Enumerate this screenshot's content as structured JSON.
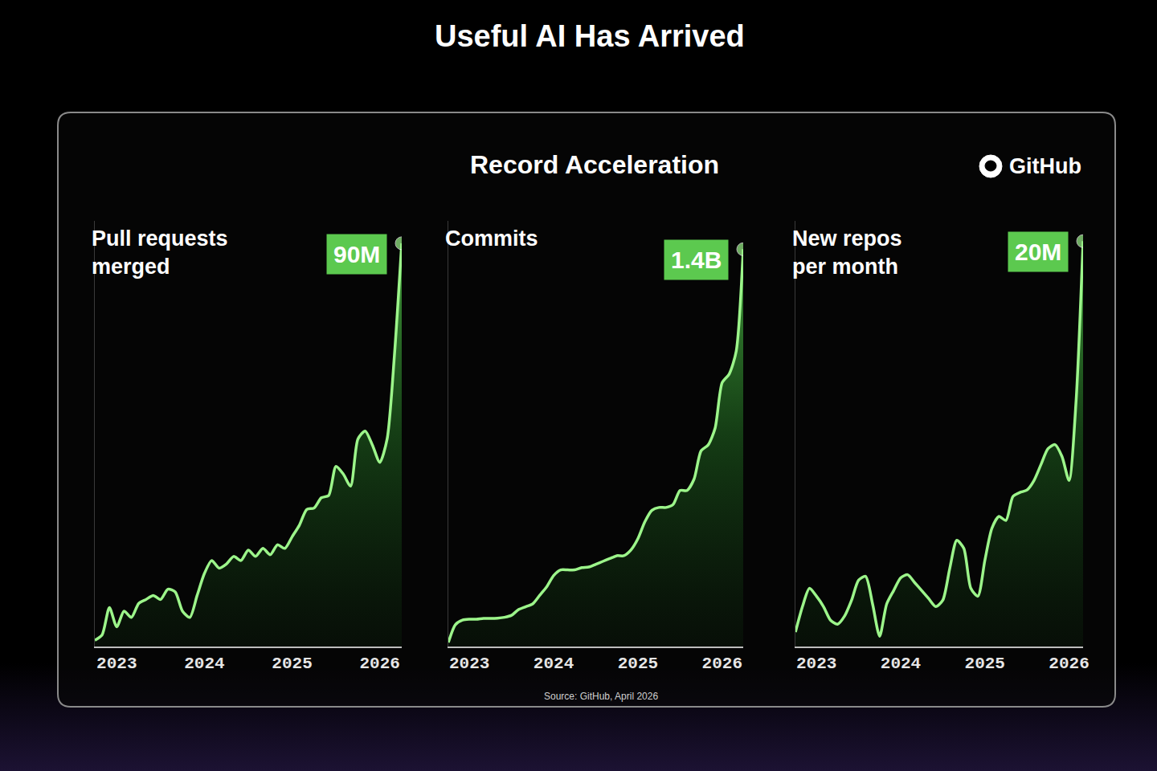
{
  "title": "Useful AI Has Arrived",
  "panel": {
    "title": "Record Acceleration",
    "brand": "GitHub",
    "source": "Source: GitHub, April 2026"
  },
  "chart_data": [
    {
      "type": "line",
      "title": "Pull requests merged",
      "categories": [
        null,
        null,
        null,
        "2023",
        null,
        null,
        null,
        null,
        null,
        null,
        null,
        null,
        null,
        null,
        null,
        "2024",
        null,
        null,
        null,
        null,
        null,
        null,
        null,
        null,
        null,
        null,
        null,
        "2025",
        null,
        null,
        null,
        null,
        null,
        null,
        null,
        null,
        null,
        null,
        null,
        "2026",
        null,
        null,
        null
      ],
      "values": [
        1400000,
        2600000,
        8700000,
        4400000,
        7900000,
        6500000,
        9600000,
        10500000,
        11400000,
        10500000,
        12800000,
        12200000,
        7900000,
        6500000,
        11400000,
        16300000,
        19200000,
        17500000,
        18400000,
        20100000,
        19200000,
        21500000,
        20100000,
        21900000,
        20500000,
        22700000,
        21900000,
        24500000,
        27100000,
        30600000,
        30900000,
        33200000,
        33700000,
        40200000,
        38500000,
        35800000,
        46300000,
        48100000,
        44900000,
        41100000,
        46300000,
        65000000,
        90000000
      ],
      "color": "#9cf58a",
      "ylim": [
        0,
        95000000
      ],
      "tick_labels": "x",
      "grid": false,
      "annotations": [
        {
          "x": 42,
          "y": 90000000,
          "text": "90M"
        }
      ]
    },
    {
      "type": "line",
      "title": "Commits",
      "categories": [
        null,
        null,
        null,
        "2023",
        null,
        null,
        null,
        null,
        null,
        null,
        null,
        null,
        null,
        null,
        null,
        "2024",
        null,
        null,
        null,
        null,
        null,
        null,
        null,
        null,
        null,
        null,
        null,
        "2025",
        null,
        null,
        null,
        null,
        null,
        null,
        null,
        null,
        null,
        null,
        null,
        "2026",
        null,
        null,
        null
      ],
      "values": [
        14000000,
        77000000,
        93000000,
        96000000,
        96000000,
        99000000,
        99000000,
        100000000,
        103000000,
        110000000,
        130000000,
        140000000,
        150000000,
        180000000,
        210000000,
        250000000,
        270000000,
        270000000,
        270000000,
        278000000,
        280000000,
        290000000,
        300000000,
        310000000,
        320000000,
        320000000,
        340000000,
        380000000,
        440000000,
        480000000,
        490000000,
        490000000,
        500000000,
        550000000,
        550000000,
        590000000,
        690000000,
        710000000,
        770000000,
        930000000,
        960000000,
        1040000000,
        1400000000
      ],
      "color": "#9cf58a",
      "ylim": [
        0,
        1500000000
      ],
      "tick_labels": "x",
      "grid": false,
      "annotations": [
        {
          "x": 42,
          "y": 1400000000,
          "text": "1.4B"
        }
      ]
    },
    {
      "type": "line",
      "title": "New repos per month",
      "categories": [
        null,
        null,
        null,
        "2023",
        null,
        null,
        null,
        null,
        null,
        null,
        null,
        null,
        null,
        null,
        null,
        "2024",
        null,
        null,
        null,
        null,
        null,
        null,
        null,
        null,
        null,
        null,
        null,
        "2025",
        null,
        null,
        null,
        null,
        null,
        null,
        null,
        null,
        null,
        null,
        null,
        "2026",
        null,
        null
      ],
      "values": [
        710000,
        1970000,
        2870000,
        2480000,
        1970000,
        1300000,
        1100000,
        1500000,
        2280000,
        3270000,
        3460000,
        2090000,
        510000,
        2090000,
        2760000,
        3390000,
        3540000,
        3150000,
        2760000,
        2360000,
        1970000,
        2280000,
        3860000,
        5240000,
        4840000,
        2870000,
        2480000,
        4250000,
        5830000,
        6420000,
        6220000,
        7400000,
        7600000,
        7720000,
        8190000,
        8980000,
        9760000,
        9960000,
        9370000,
        8190000,
        12100000,
        20000000
      ],
      "color": "#9cf58a",
      "ylim": [
        0,
        21000000
      ],
      "tick_labels": "x",
      "grid": false,
      "annotations": [
        {
          "x": 41,
          "y": 20000000,
          "text": "20M"
        }
      ]
    }
  ]
}
